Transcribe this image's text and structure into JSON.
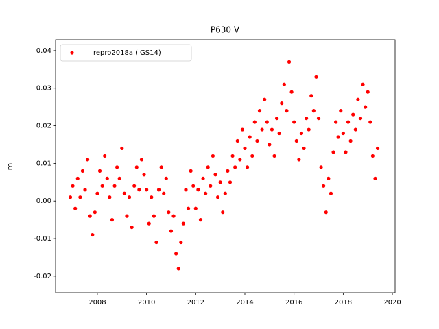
{
  "chart_data": {
    "type": "scatter",
    "title": "P630 V",
    "ylabel": "m",
    "xlim": [
      2006.3,
      2020.11
    ],
    "ylim": [
      -0.0244,
      0.0429
    ],
    "xticks": [
      2008,
      2010,
      2012,
      2014,
      2016,
      2018,
      2020
    ],
    "yticks": [
      -0.02,
      -0.01,
      {
        "value": 0,
        "label": "0.00"
      },
      0.01,
      0.02,
      0.03,
      0.04
    ],
    "legend": "upper left",
    "series": [
      {
        "name": "repro2018a (IGS14)",
        "color": "#ff0000",
        "x": [
          2006.9,
          2007.0,
          2007.1,
          2007.2,
          2007.3,
          2007.4,
          2007.5,
          2007.6,
          2007.7,
          2007.8,
          2007.9,
          2008.0,
          2008.1,
          2008.2,
          2008.3,
          2008.4,
          2008.5,
          2008.6,
          2008.7,
          2008.8,
          2008.9,
          2009.0,
          2009.1,
          2009.2,
          2009.3,
          2009.4,
          2009.5,
          2009.6,
          2009.7,
          2009.8,
          2009.9,
          2010.0,
          2010.1,
          2010.2,
          2010.3,
          2010.4,
          2010.5,
          2010.6,
          2010.7,
          2010.8,
          2010.9,
          2011.0,
          2011.1,
          2011.2,
          2011.3,
          2011.4,
          2011.5,
          2011.6,
          2011.7,
          2011.8,
          2011.9,
          2012.0,
          2012.1,
          2012.2,
          2012.3,
          2012.4,
          2012.5,
          2012.6,
          2012.7,
          2012.8,
          2012.9,
          2013.0,
          2013.1,
          2013.2,
          2013.3,
          2013.4,
          2013.5,
          2013.6,
          2013.7,
          2013.8,
          2013.9,
          2014.0,
          2014.1,
          2014.2,
          2014.3,
          2014.4,
          2014.5,
          2014.6,
          2014.7,
          2014.8,
          2014.9,
          2015.0,
          2015.1,
          2015.2,
          2015.3,
          2015.4,
          2015.5,
          2015.6,
          2015.7,
          2015.8,
          2015.9,
          2016.0,
          2016.1,
          2016.2,
          2016.3,
          2016.4,
          2016.5,
          2016.6,
          2016.7,
          2016.8,
          2016.9,
          2017.0,
          2017.1,
          2017.2,
          2017.3,
          2017.4,
          2017.5,
          2017.6,
          2017.7,
          2017.8,
          2017.9,
          2018.0,
          2018.1,
          2018.2,
          2018.3,
          2018.4,
          2018.5,
          2018.6,
          2018.7,
          2018.8,
          2018.9,
          2019.0,
          2019.1,
          2019.2,
          2019.3,
          2019.4
        ],
        "values": [
          0.001,
          0.004,
          -0.002,
          0.006,
          0.001,
          0.008,
          0.003,
          0.011,
          -0.004,
          -0.009,
          -0.003,
          0.002,
          0.008,
          0.004,
          0.012,
          0.006,
          0.001,
          -0.005,
          0.004,
          0.009,
          0.006,
          0.014,
          0.002,
          -0.004,
          0.001,
          -0.007,
          0.004,
          0.009,
          0.003,
          0.011,
          0.007,
          0.003,
          -0.006,
          0.001,
          -0.004,
          -0.011,
          0.003,
          0.009,
          0.002,
          0.006,
          -0.003,
          -0.008,
          -0.004,
          -0.014,
          -0.018,
          -0.011,
          -0.006,
          0.003,
          -0.002,
          0.008,
          0.004,
          -0.002,
          0.003,
          -0.005,
          0.006,
          0.002,
          0.009,
          0.004,
          0.012,
          0.007,
          0.001,
          0.005,
          -0.003,
          0.002,
          0.008,
          0.005,
          0.012,
          0.009,
          0.016,
          0.011,
          0.019,
          0.014,
          0.009,
          0.017,
          0.012,
          0.021,
          0.016,
          0.024,
          0.019,
          0.027,
          0.021,
          0.015,
          0.019,
          0.012,
          0.022,
          0.018,
          0.026,
          0.031,
          0.024,
          0.037,
          0.029,
          0.021,
          0.016,
          0.011,
          0.018,
          0.014,
          0.022,
          0.019,
          0.028,
          0.024,
          0.033,
          0.022,
          0.009,
          0.004,
          -0.003,
          0.006,
          0.002,
          0.013,
          0.021,
          0.017,
          0.024,
          0.018,
          0.013,
          0.021,
          0.016,
          0.023,
          0.019,
          0.027,
          0.022,
          0.031,
          0.025,
          0.029,
          0.021,
          0.012,
          0.006,
          0.014
        ]
      }
    ]
  }
}
